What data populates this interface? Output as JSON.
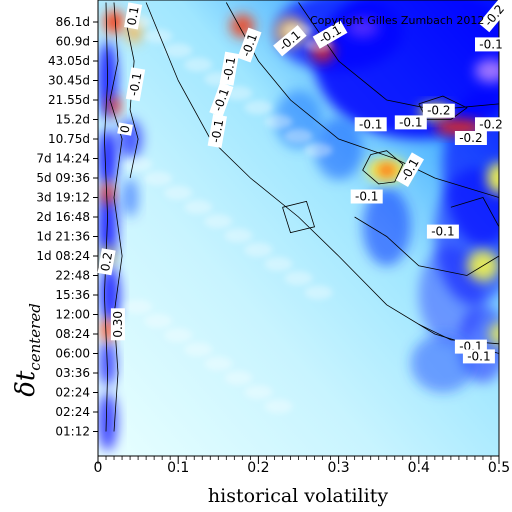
{
  "chart_data": {
    "type": "heatmap",
    "title": "",
    "copyright": "Copyright Gilles Zumbach 2012",
    "xlabel": "historical volatility",
    "ylabel": "δt",
    "ylabel_subscript": "centered",
    "xlim": [
      0,
      0.5
    ],
    "x_ticks": [
      "0",
      "0.1",
      "0.2",
      "0.3",
      "0.4",
      "0.5"
    ],
    "y_ticks": [
      "86.1d",
      "60.9d",
      "43.05d",
      "30.45d",
      "21.55d",
      "15.2d",
      "10.75d",
      "7d 14:24",
      "5d 09:36",
      "3d 19:12",
      "2d 16:48",
      "1d 21:36",
      "1d 08:24",
      "22:48",
      "15:36",
      "12:00",
      "08:24",
      "06:00",
      "03:36",
      "02:24",
      "02:24",
      "01:12"
    ],
    "colors": {
      "low": "#0000ff",
      "mid_low": "#00ccff",
      "zero": "#e0ffff",
      "mid_high": "#ffff40",
      "high": "#ff3000"
    },
    "contour_labels": [
      {
        "text": "-0.1",
        "x": 0.49,
        "y_index": 1.2,
        "rotate": 0
      },
      {
        "text": "-0.1",
        "x": 0.29,
        "y_index": 0.7,
        "rotate": 30
      },
      {
        "text": "-0.1",
        "x": 0.19,
        "y_index": 1.2,
        "rotate": 70
      },
      {
        "text": "-0.1",
        "x": 0.165,
        "y_index": 2.4,
        "rotate": 80
      },
      {
        "text": "-0.1",
        "x": 0.24,
        "y_index": 1.0,
        "rotate": 40
      },
      {
        "text": "-0.1",
        "x": 0.155,
        "y_index": 4.0,
        "rotate": 70
      },
      {
        "text": "-0.1",
        "x": 0.15,
        "y_index": 5.6,
        "rotate": 80
      },
      {
        "text": "-0.1",
        "x": 0.34,
        "y_index": 5.3,
        "rotate": 0
      },
      {
        "text": "-0.1",
        "x": 0.39,
        "y_index": 5.2,
        "rotate": 0
      },
      {
        "text": "-0.2",
        "x": 0.425,
        "y_index": 4.6,
        "rotate": 0
      },
      {
        "text": "-0.2",
        "x": 0.49,
        "y_index": 5.3,
        "rotate": 0
      },
      {
        "text": "-0.2",
        "x": 0.465,
        "y_index": 6.0,
        "rotate": 0
      },
      {
        "text": "-0.1",
        "x": 0.39,
        "y_index": 7.6,
        "rotate": 60
      },
      {
        "text": "-0.1",
        "x": 0.335,
        "y_index": 9.0,
        "rotate": 0
      },
      {
        "text": "-0.1",
        "x": 0.43,
        "y_index": 10.8,
        "rotate": 0
      },
      {
        "text": "-0.1",
        "x": 0.465,
        "y_index": 16.7,
        "rotate": 0
      },
      {
        "text": "-0.1",
        "x": 0.475,
        "y_index": 17.2,
        "rotate": 0
      },
      {
        "text": "-0.1",
        "x": 0.048,
        "y_index": 3.2,
        "rotate": 80
      },
      {
        "text": "0.1",
        "x": 0.045,
        "y_index": -0.3,
        "rotate": 80
      },
      {
        "text": "0",
        "x": 0.035,
        "y_index": 5.5,
        "rotate": 80
      },
      {
        "text": "0.2",
        "x": 0.012,
        "y_index": 12.3,
        "rotate": 80
      },
      {
        "text": "0.30",
        "x": 0.026,
        "y_index": 15.5,
        "rotate": 90
      },
      {
        "text": "-0.2",
        "x": 0.52,
        "y_index": -0.3,
        "rotate": 50
      }
    ]
  }
}
